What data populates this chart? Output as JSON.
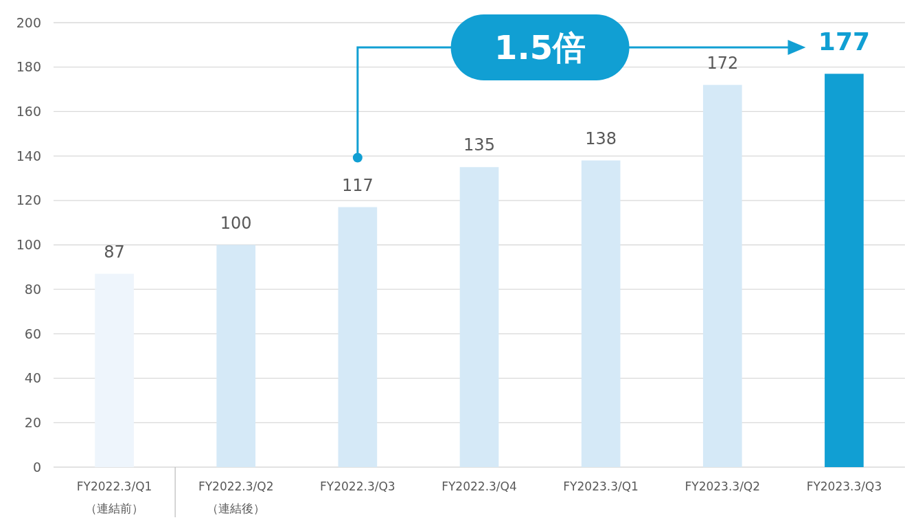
{
  "chart_data": {
    "type": "bar",
    "categories": [
      "FY2022.3/Q1\n（連結前）",
      "FY2022.3/Q2\n（連結後）",
      "FY2022.3/Q3",
      "FY2022.3/Q4",
      "FY2023.3/Q1",
      "FY2023.3/Q2",
      "FY2023.3/Q3"
    ],
    "values": [
      87,
      100,
      117,
      135,
      138,
      172,
      177
    ],
    "colors": [
      "#eef5fc",
      "#d5e9f7",
      "#d5e9f7",
      "#d5e9f7",
      "#d5e9f7",
      "#d5e9f7",
      "#119fd3"
    ],
    "ylim": [
      0,
      200
    ],
    "yticks": [
      0,
      20,
      40,
      60,
      80,
      100,
      120,
      140,
      160,
      180,
      200
    ],
    "grid": "y",
    "data_labels": true,
    "annotations": [
      "1.5倍"
    ]
  }
}
